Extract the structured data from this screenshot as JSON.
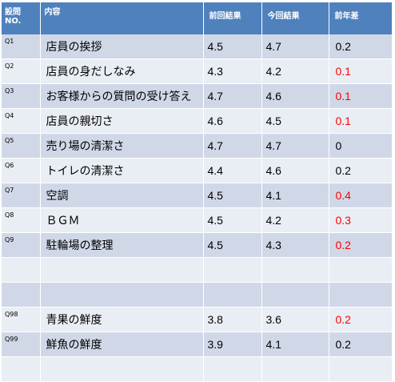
{
  "colors": {
    "header_bg": "#4f81bd",
    "row_dark": "#d0d8e8",
    "row_light": "#e9edf4",
    "negative_text": "#ff0000"
  },
  "header": {
    "qno": "設問NO.",
    "content": "内容",
    "prev": "前回結果",
    "curr": "今回結果",
    "diff": "前年差"
  },
  "rows": [
    {
      "qno": "Q1",
      "content": "店員の挨拶",
      "prev": "4.5",
      "curr": "4.7",
      "diff": "0.2",
      "negative": false
    },
    {
      "qno": "Q2",
      "content": "店員の身だしなみ",
      "prev": "4.3",
      "curr": "4.2",
      "diff": "0.1",
      "negative": true
    },
    {
      "qno": "Q3",
      "content": "お客様からの質問の受け答え",
      "prev": "4.7",
      "curr": "4.6",
      "diff": "0.1",
      "negative": true
    },
    {
      "qno": "Q4",
      "content": "店員の親切さ",
      "prev": "4.6",
      "curr": "4.5",
      "diff": "0.1",
      "negative": true
    },
    {
      "qno": "Q5",
      "content": "売り場の清潔さ",
      "prev": "4.7",
      "curr": "4.7",
      "diff": "0",
      "negative": false
    },
    {
      "qno": "Q6",
      "content": "トイレの清潔さ",
      "prev": "4.4",
      "curr": "4.6",
      "diff": "0.2",
      "negative": false
    },
    {
      "qno": "Q7",
      "content": "空調",
      "prev": "4.5",
      "curr": "4.1",
      "diff": "0.4",
      "negative": true
    },
    {
      "qno": "Q8",
      "content": "ＢＧＭ",
      "prev": "4.5",
      "curr": "4.2",
      "diff": "0.3",
      "negative": true
    },
    {
      "qno": "Q9",
      "content": "駐輪場の整理",
      "prev": "4.5",
      "curr": "4.3",
      "diff": "0.2",
      "negative": true
    },
    {
      "qno": "",
      "content": "",
      "prev": "",
      "curr": "",
      "diff": "",
      "negative": false
    },
    {
      "qno": "",
      "content": "",
      "prev": "",
      "curr": "",
      "diff": "",
      "negative": false
    },
    {
      "qno": "Q98",
      "content": "青果の鮮度",
      "prev": "3.8",
      "curr": "3.6",
      "diff": "0.2",
      "negative": true
    },
    {
      "qno": "Q99",
      "content": "鮮魚の鮮度",
      "prev": "3.9",
      "curr": "4.1",
      "diff": "0.2",
      "negative": false
    },
    {
      "qno": "",
      "content": "",
      "prev": "",
      "curr": "",
      "diff": "",
      "negative": false
    }
  ]
}
